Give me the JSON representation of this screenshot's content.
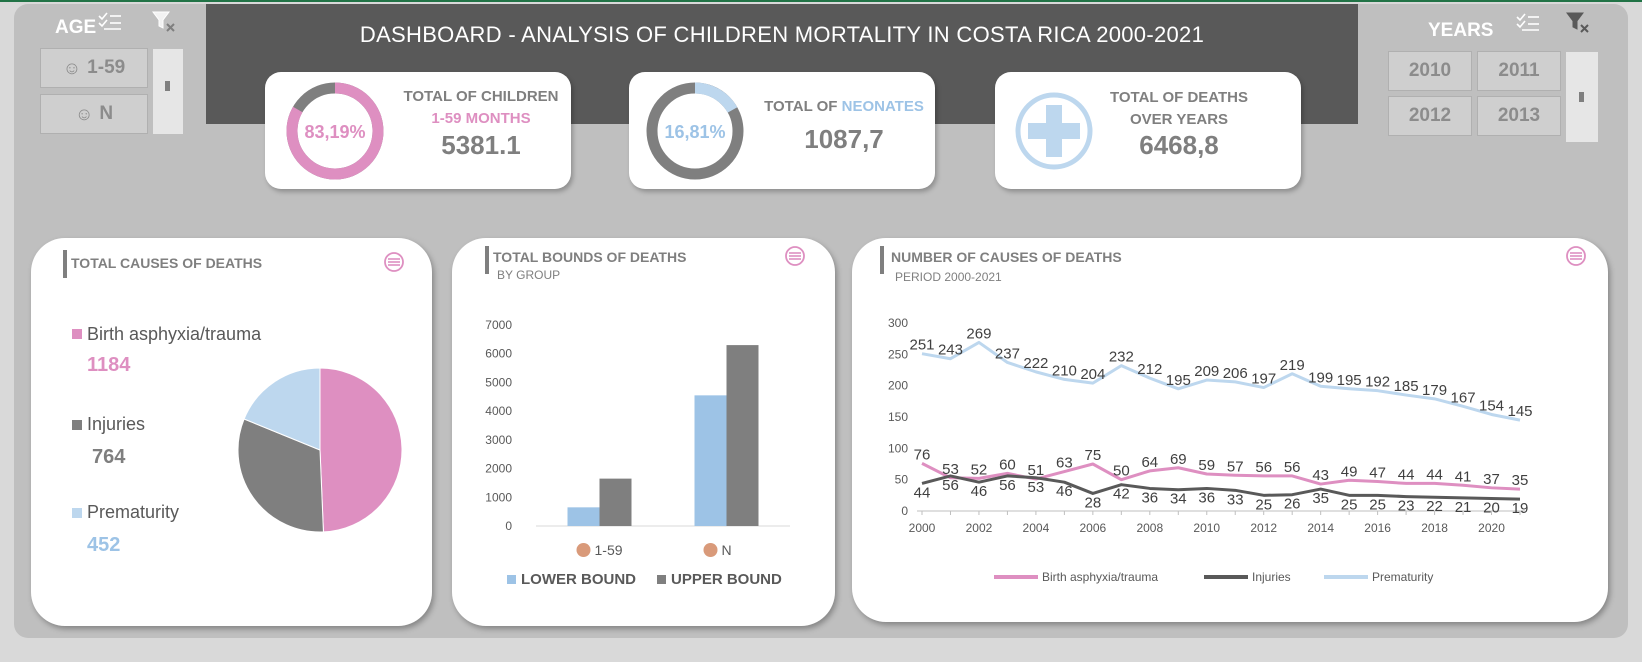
{
  "title": "DASHBOARD - ANALYSIS OF CHILDREN MORTALITY IN COSTA RICA 2000-2021",
  "age_slicer": {
    "title": "AGE",
    "items": [
      "1-59",
      "N"
    ]
  },
  "years_slicer": {
    "title": "YEARS",
    "items": [
      "2010",
      "2011",
      "2012",
      "2013"
    ]
  },
  "kpis": [
    {
      "donut_label": "83,19%",
      "percent": 83.19,
      "label_line1": "TOTAL OF CHILDREN",
      "label_line2": "1-59 MONTHS",
      "value": "5381.1",
      "color": "#de8fc1"
    },
    {
      "donut_label": "16,81%",
      "percent": 16.81,
      "label_prefix": "TOTAL OF ",
      "label_highlight": "NEONATES",
      "value": "1087,7",
      "color": "#bdd7ee"
    },
    {
      "label_line1": "TOTAL OF DEATHS",
      "label_line2": "OVER YEARS",
      "value": "6468,8",
      "icon": "plus-icon"
    }
  ],
  "panels": {
    "causes": {
      "title": "TOTAL CAUSES OF DEATHS",
      "items": [
        {
          "name": "Birth asphyxia/trauma",
          "value": "1184",
          "color": "#de8fc1"
        },
        {
          "name": "Injuries",
          "value": "764",
          "color": "#7f7f7f"
        },
        {
          "name": "Prematurity",
          "value": "452",
          "color": "#bdd7ee"
        }
      ]
    },
    "bounds": {
      "title": "TOTAL BOUNDS OF DEATHS",
      "subtitle": "BY GROUP"
    },
    "trend": {
      "title": "NUMBER OF CAUSES OF DEATHS",
      "subtitle": "PERIOD 2000-2021"
    }
  },
  "chart_data": [
    {
      "type": "pie",
      "categories": [
        "Birth asphyxia/trauma",
        "Injuries",
        "Prematurity"
      ],
      "values": [
        1184,
        764,
        452
      ],
      "colors": [
        "#de8fc1",
        "#7f7f7f",
        "#bdd7ee"
      ]
    },
    {
      "type": "bar",
      "categories": [
        "1-59",
        "N"
      ],
      "series": [
        {
          "name": "LOWER BOUND",
          "values": [
            650,
            4550
          ],
          "color": "#9dc3e6"
        },
        {
          "name": "UPPER BOUND",
          "values": [
            1650,
            6300
          ],
          "color": "#7f7f7f"
        }
      ],
      "ylim": [
        0,
        7000
      ],
      "yticks": [
        0,
        1000,
        2000,
        3000,
        4000,
        5000,
        6000,
        7000
      ],
      "legend": "bottom"
    },
    {
      "type": "line",
      "x": [
        2000,
        2001,
        2002,
        2003,
        2004,
        2005,
        2006,
        2007,
        2008,
        2009,
        2010,
        2011,
        2012,
        2013,
        2014,
        2015,
        2016,
        2017,
        2018,
        2019,
        2020,
        2021
      ],
      "xticks": [
        2000,
        2002,
        2004,
        2006,
        2008,
        2010,
        2012,
        2014,
        2016,
        2018,
        2020
      ],
      "series": [
        {
          "name": "Birth asphyxia/trauma",
          "color": "#de8fc1",
          "values": [
            76,
            53,
            52,
            60,
            51,
            63,
            75,
            50,
            64,
            69,
            59,
            57,
            56,
            56,
            43,
            49,
            47,
            44,
            44,
            41,
            37,
            35
          ]
        },
        {
          "name": "Injuries",
          "color": "#595959",
          "values": [
            44,
            56,
            46,
            56,
            53,
            46,
            28,
            42,
            36,
            34,
            36,
            33,
            25,
            26,
            35,
            25,
            25,
            23,
            22,
            21,
            20,
            19
          ]
        },
        {
          "name": "Prematurity",
          "color": "#bdd7ee",
          "values": [
            251,
            243,
            269,
            237,
            222,
            210,
            204,
            232,
            212,
            195,
            209,
            206,
            197,
            219,
            199,
            195,
            192,
            185,
            179,
            167,
            154,
            145
          ]
        }
      ],
      "ylim": [
        0,
        300
      ],
      "yticks": [
        0,
        50,
        100,
        150,
        200,
        250,
        300
      ],
      "legend": "bottom"
    }
  ]
}
